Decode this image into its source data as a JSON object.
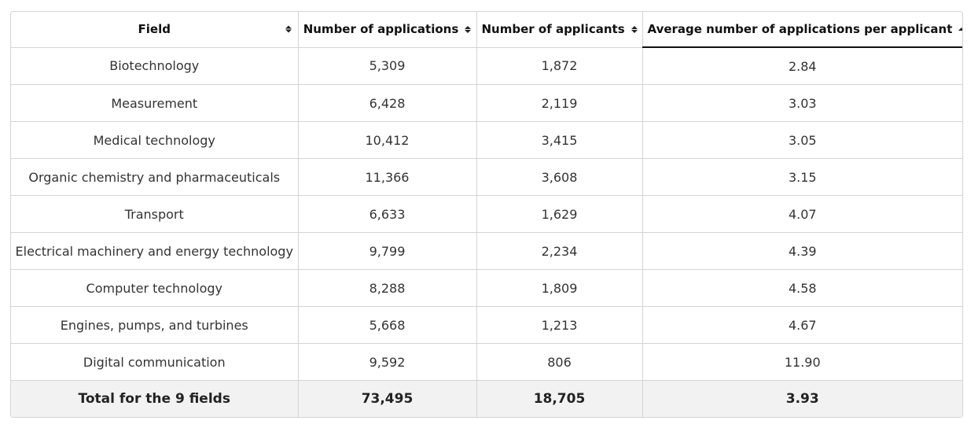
{
  "table": {
    "headers": [
      {
        "label": "Field",
        "sort": "none"
      },
      {
        "label": "Number of applications",
        "sort": "none"
      },
      {
        "label": "Number of applicants",
        "sort": "none"
      },
      {
        "label": "Average number of applications per applicant",
        "sort": "ascending"
      }
    ],
    "rows": [
      {
        "field": "Biotechnology",
        "applications": "5,309",
        "applicants": "1,872",
        "average": "2.84"
      },
      {
        "field": "Measurement",
        "applications": "6,428",
        "applicants": "2,119",
        "average": "3.03"
      },
      {
        "field": "Medical technology",
        "applications": "10,412",
        "applicants": "3,415",
        "average": "3.05"
      },
      {
        "field": "Organic chemistry and pharmaceuticals",
        "applications": "11,366",
        "applicants": "3,608",
        "average": "3.15"
      },
      {
        "field": "Transport",
        "applications": "6,633",
        "applicants": "1,629",
        "average": "4.07"
      },
      {
        "field": "Electrical machinery and energy technology",
        "applications": "9,799",
        "applicants": "2,234",
        "average": "4.39"
      },
      {
        "field": "Computer technology",
        "applications": "8,288",
        "applicants": "1,809",
        "average": "4.58"
      },
      {
        "field": "Engines, pumps, and turbines",
        "applications": "5,668",
        "applicants": "1,213",
        "average": "4.67"
      },
      {
        "field": "Digital communication",
        "applications": "9,592",
        "applicants": "806",
        "average": "11.90"
      }
    ],
    "total": {
      "field": "Total for the 9 fields",
      "applications": "73,495",
      "applicants": "18,705",
      "average": "3.93"
    }
  }
}
